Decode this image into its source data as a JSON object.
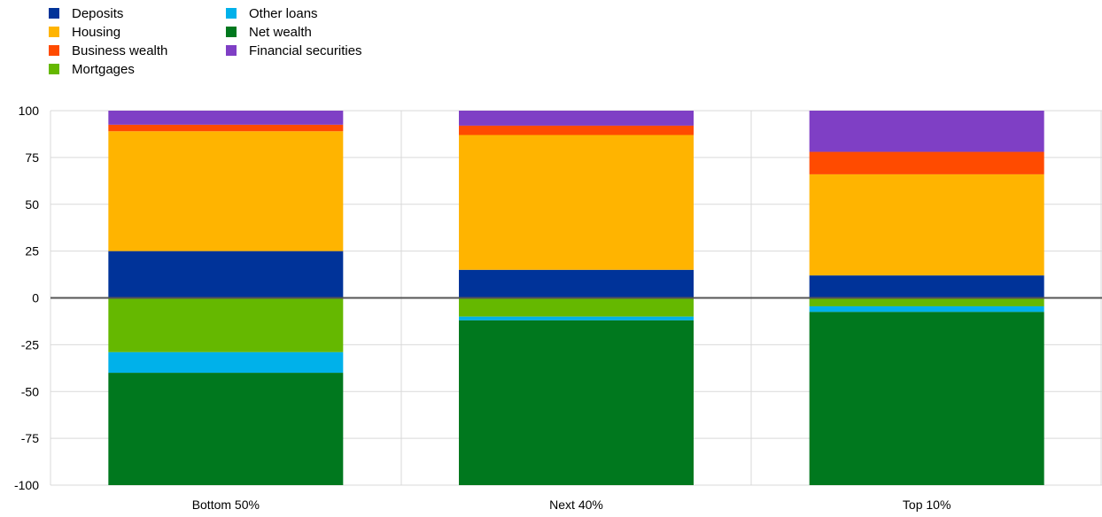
{
  "chart_data": {
    "type": "bar",
    "stacked": true,
    "categories": [
      "Bottom 50%",
      "Next 40%",
      "Top 10%"
    ],
    "ylim": [
      -100,
      100
    ],
    "yticks": [
      -100,
      -75,
      -50,
      -25,
      0,
      25,
      50,
      75,
      100
    ],
    "legend_placement": "top-left",
    "grid": true,
    "series": [
      {
        "name": "Deposits",
        "color": "#003399",
        "values": [
          25,
          15,
          12
        ]
      },
      {
        "name": "Housing",
        "color": "#FFB400",
        "values": [
          64,
          72,
          54
        ]
      },
      {
        "name": "Business wealth",
        "color": "#FF4B00",
        "values": [
          3.5,
          5,
          12
        ]
      },
      {
        "name": "Financial securities",
        "color": "#7F3FC5",
        "values": [
          7.5,
          8,
          22
        ]
      },
      {
        "name": "Mortgages",
        "color": "#65B800",
        "values": [
          -29,
          -10,
          -4.5
        ]
      },
      {
        "name": "Other loans",
        "color": "#00B1EA",
        "values": [
          -11,
          -2,
          -3
        ]
      },
      {
        "name": "Net wealth",
        "color": "#00781E",
        "values": [
          -60,
          -88,
          -92.5
        ]
      }
    ],
    "legend": [
      [
        "Deposits",
        "Housing",
        "Business wealth",
        "Mortgages"
      ],
      [
        "Other loans",
        "Net wealth",
        "Financial securities"
      ]
    ]
  }
}
